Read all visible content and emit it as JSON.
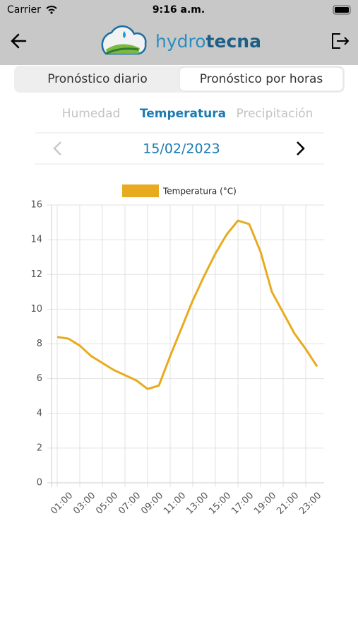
{
  "status_bar": {
    "carrier": "Carrier",
    "time": "9:16 a.m."
  },
  "header": {
    "brand_first": "hydro",
    "brand_second": "tecna"
  },
  "segments": {
    "items": [
      "Pronóstico diario",
      "Pronóstico por horas"
    ],
    "selected": 1
  },
  "tabs": {
    "items": [
      "Humedad",
      "Temperatura",
      "Precipitación"
    ],
    "active": 1
  },
  "date": "15/02/2023",
  "chart_data": {
    "type": "line",
    "categories": [
      null,
      "01:00",
      null,
      "03:00",
      null,
      "05:00",
      null,
      "07:00",
      null,
      "09:00",
      null,
      "11:00",
      null,
      "13:00",
      null,
      "15:00",
      null,
      "17:00",
      null,
      "19:00",
      null,
      "21:00",
      null,
      "23:00"
    ],
    "series": [
      {
        "name": "Temperatura (°C)",
        "color": "#e8ab1f",
        "values": [
          8.4,
          8.3,
          7.9,
          7.3,
          6.9,
          6.5,
          6.2,
          5.9,
          5.4,
          5.6,
          7.3,
          8.9,
          10.5,
          11.9,
          13.2,
          14.3,
          15.1,
          14.9,
          13.3,
          11.0,
          9.8,
          8.6,
          7.7,
          6.7
        ]
      }
    ],
    "ylim": [
      0,
      16
    ],
    "yticks": [
      0,
      2,
      4,
      6,
      8,
      10,
      12,
      14,
      16
    ],
    "grid": true,
    "legend": "top"
  }
}
